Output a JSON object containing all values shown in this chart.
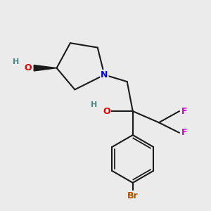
{
  "bg_color": "#ebebeb",
  "bond_color": "#1a1a1a",
  "bond_width": 1.5,
  "atom_colors": {
    "N": "#0000dd",
    "O": "#dd0000",
    "F": "#cc00cc",
    "Br": "#aa5500",
    "H": "#4a8888",
    "C": "#1a1a1a"
  },
  "font_size_atom": 9,
  "font_size_h": 8,
  "font_size_br": 9
}
